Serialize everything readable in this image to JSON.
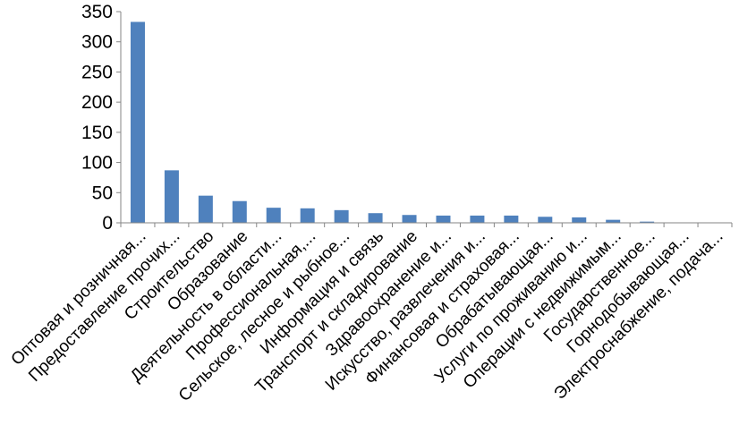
{
  "chart_data": {
    "type": "bar",
    "title": "",
    "xlabel": "",
    "ylabel": "",
    "ylim": [
      0,
      350
    ],
    "yticks": [
      0,
      50,
      100,
      150,
      200,
      250,
      300,
      350
    ],
    "grid": false,
    "legend": "none",
    "bar_color": "#4f81bd",
    "axis_color": "#868686",
    "categories": [
      "Оптовая и розничная...",
      "Предоставление прочих...",
      "Строительство",
      "Образование",
      "Деятельность в области...",
      "Профессиональная,...",
      "Сельское, лесное и рыбное...",
      "Информация и связь",
      "Транспорт и складирование",
      "Здравоохранение и...",
      "Искусство, развлечения и...",
      "Финансовая и страховая...",
      "Обрабатывающая...",
      "Услуги по проживанию и...",
      "Операции с недвижимым...",
      "Государственное...",
      "Горнодобывающая...",
      "Электроснабжение, подача..."
    ],
    "values": [
      333,
      87,
      45,
      36,
      25,
      24,
      21,
      16,
      13,
      12,
      12,
      12,
      10,
      9,
      5,
      2,
      0,
      0
    ]
  }
}
